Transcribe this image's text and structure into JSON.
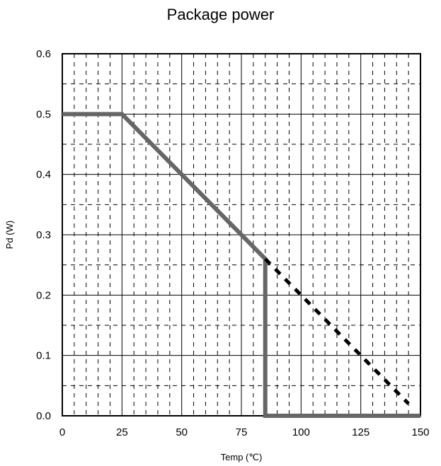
{
  "chart_data": {
    "type": "line",
    "title": "Package power",
    "xlabel": "Temp (℃)",
    "ylabel": "Pd (W)",
    "xlim": [
      0,
      150
    ],
    "ylim": [
      0,
      0.6
    ],
    "x_ticks": [
      0,
      25,
      50,
      75,
      100,
      125,
      150
    ],
    "y_ticks": [
      0.0,
      0.1,
      0.2,
      0.3,
      0.4,
      0.5,
      0.6
    ],
    "x_tick_labels": [
      "0",
      "25",
      "50",
      "75",
      "100",
      "125",
      "150"
    ],
    "y_tick_labels": [
      "0.0",
      "0.1",
      "0.2",
      "0.3",
      "0.4",
      "0.5",
      "0.6"
    ],
    "grid": true,
    "series": [
      {
        "style": "solid",
        "color": "#666666",
        "x": [
          0,
          25,
          85,
          85,
          150
        ],
        "y": [
          0.5,
          0.5,
          0.26,
          0,
          0
        ]
      },
      {
        "style": "dashed",
        "color": "#000000",
        "x": [
          85,
          145
        ],
        "y": [
          0.26,
          0.02
        ]
      }
    ]
  }
}
